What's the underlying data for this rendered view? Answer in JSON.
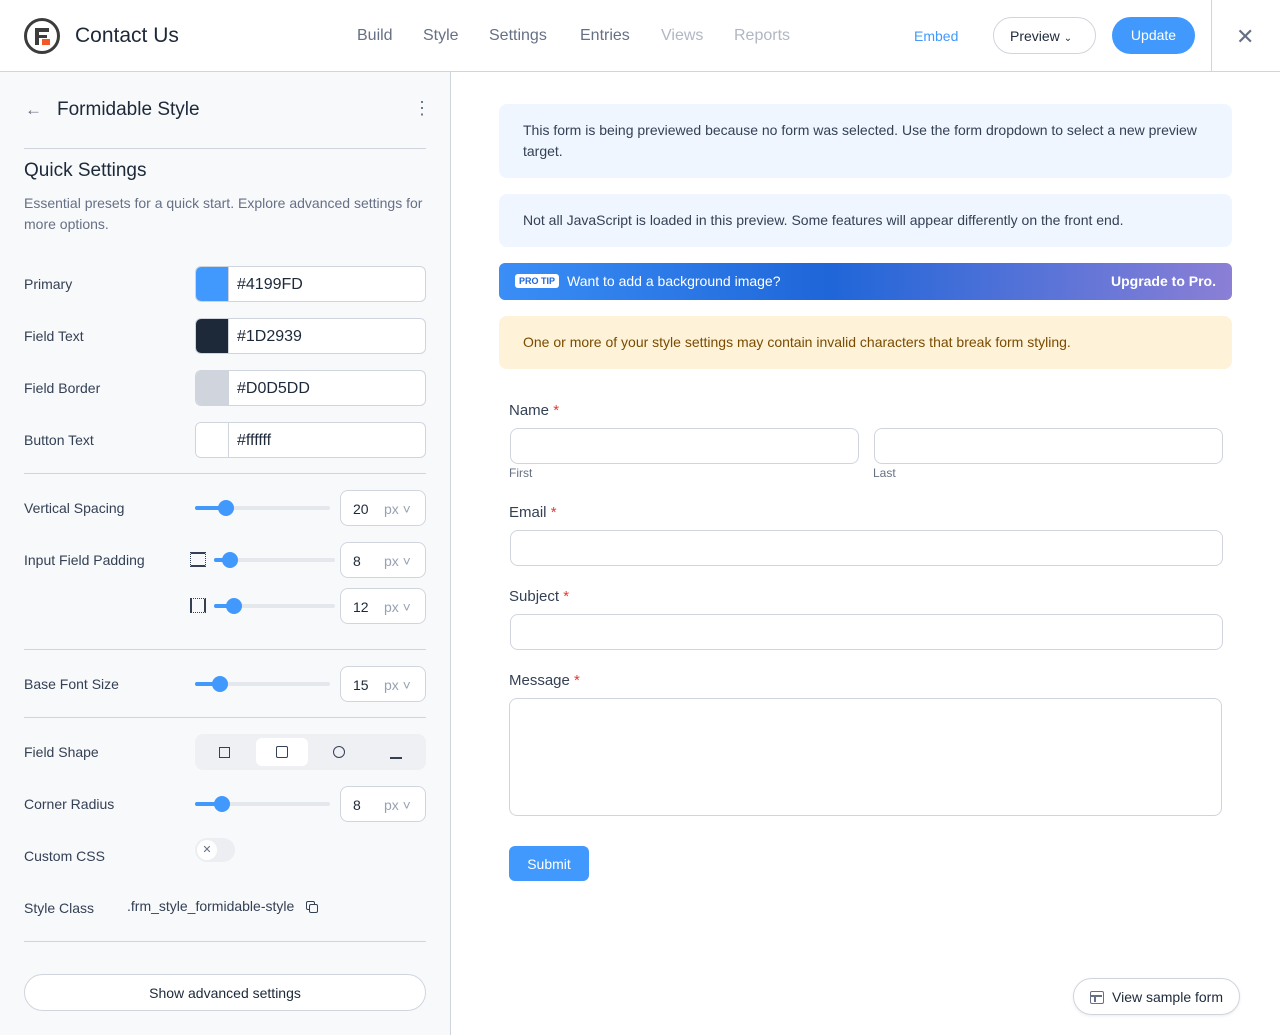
{
  "header": {
    "title": "Contact Us",
    "nav": [
      "Build",
      "Style",
      "Settings",
      "Entries",
      "Views",
      "Reports"
    ],
    "embed": "Embed",
    "preview": "Preview",
    "update": "Update"
  },
  "sidebar": {
    "back_title": "Formidable Style",
    "section_title": "Quick Settings",
    "section_desc": "Essential presets for a quick start. Explore advanced settings for more options.",
    "colors": [
      {
        "label": "Primary",
        "value": "#4199FD",
        "swatch": "#4199FD"
      },
      {
        "label": "Field Text",
        "value": "#1D2939",
        "swatch": "#1D2939"
      },
      {
        "label": "Field Border",
        "value": "#D0D5DD",
        "swatch": "#D0D5DD"
      },
      {
        "label": "Button Text",
        "value": "#ffffff",
        "swatch": "#ffffff"
      }
    ],
    "vertical_spacing": {
      "label": "Vertical Spacing",
      "value": "20",
      "unit": "px"
    },
    "input_padding": {
      "label": "Input Field Padding",
      "vertical": "8",
      "horizontal": "12",
      "unit": "px"
    },
    "base_font": {
      "label": "Base Font Size",
      "value": "15",
      "unit": "px"
    },
    "field_shape": {
      "label": "Field Shape",
      "selected": 1
    },
    "corner_radius": {
      "label": "Corner Radius",
      "value": "8",
      "unit": "px"
    },
    "custom_css": {
      "label": "Custom CSS",
      "enabled": false
    },
    "style_class": {
      "label": "Style Class",
      "value": ".frm_style_formidable-style"
    },
    "advanced": "Show advanced settings"
  },
  "preview": {
    "notice1": "This form is being previewed because no form was selected. Use the form dropdown to select a new preview target.",
    "notice2": "Not all JavaScript is loaded in this preview. Some features will appear differently on the front end.",
    "protip_badge": "PRO TIP",
    "protip_text": "Want to add a background image?",
    "protip_link": "Upgrade to Pro.",
    "warning": "One or more of your style settings may contain invalid characters that break form styling.",
    "form": {
      "name": "Name",
      "first": "First",
      "last": "Last",
      "email": "Email",
      "subject": "Subject",
      "message": "Message",
      "required": "*",
      "submit": "Submit"
    },
    "sample": "View sample form"
  }
}
